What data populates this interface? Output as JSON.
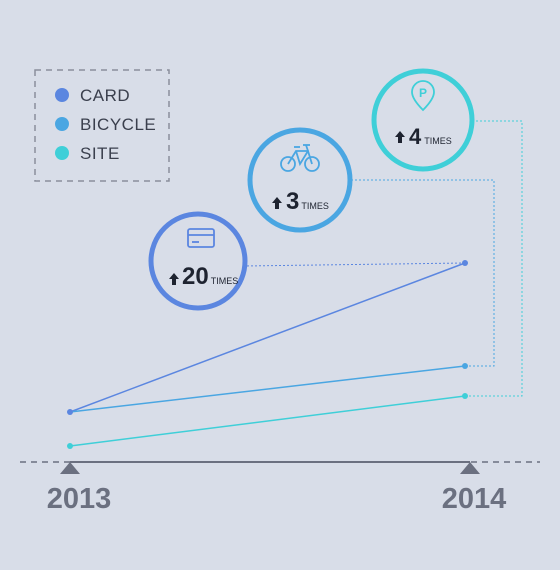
{
  "colors": {
    "background": "#d8dde8",
    "card": "#5b86e0",
    "bicycle": "#4aa6e2",
    "site": "#3fcfd8",
    "axis": "#6b7080",
    "text": "#1e2330"
  },
  "chart_data": {
    "type": "line",
    "x": [
      "2013",
      "2014"
    ],
    "legend_position": "top-left",
    "series": [
      {
        "key": "card",
        "name": "CARD",
        "values": [
          1,
          20
        ],
        "multiplier": "20",
        "unit": "TIMES",
        "icon": "credit-card-icon"
      },
      {
        "key": "bicycle",
        "name": "BICYCLE",
        "values": [
          1,
          3
        ],
        "multiplier": "3",
        "unit": "TIMES",
        "icon": "bicycle-icon"
      },
      {
        "key": "site",
        "name": "SITE",
        "values": [
          1,
          4
        ],
        "multiplier": "4",
        "unit": "TIMES",
        "icon": "parking-pin-icon"
      }
    ]
  }
}
